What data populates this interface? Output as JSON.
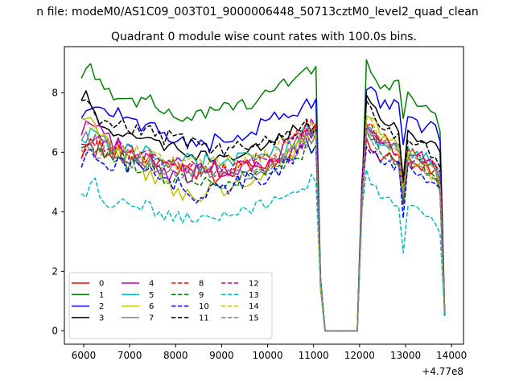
{
  "chart_data": {
    "type": "line",
    "suptitle": "n file: modeM0/AS1C09_003T01_9000006448_50713cztM0_level2_quad_clean",
    "title": "Quadrant 0 module wise count rates with 100.0s bins.",
    "xlabel": "",
    "ylabel": "",
    "x_offset_label": "+4.77e8",
    "xlim": [
      5580,
      14260
    ],
    "ylim": [
      -0.45,
      9.55
    ],
    "xticks": [
      6000,
      7000,
      8000,
      9000,
      10000,
      11000,
      12000,
      13000,
      14000
    ],
    "xtick_labels": [
      "6000",
      "7000",
      "8000",
      "9000",
      "10000",
      "11000",
      "12000",
      "13000",
      "14000"
    ],
    "yticks": [
      0,
      2,
      4,
      6,
      8
    ],
    "ytick_labels": [
      "0",
      "2",
      "4",
      "6",
      "8"
    ],
    "grid": false,
    "legend_position": "lower-left",
    "legend_columns": 4,
    "x_start": 5950,
    "x_step": 100,
    "series": [
      {
        "name": "0",
        "color": "#ff0000",
        "dash": "solid",
        "noise": 0.35,
        "base": [
          [
            5950,
            5.7
          ],
          [
            6100,
            6.2
          ],
          [
            6600,
            6.1
          ],
          [
            7000,
            5.9
          ],
          [
            8000,
            5.5
          ],
          [
            9000,
            5.3
          ],
          [
            10000,
            5.6
          ],
          [
            10500,
            6.0
          ],
          [
            11000,
            6.8
          ]
        ],
        "post": [
          [
            12150,
            6.2
          ],
          [
            12500,
            5.8
          ],
          [
            12900,
            5.6
          ],
          [
            13200,
            5.7
          ],
          [
            13700,
            5.2
          ],
          [
            13850,
            4.0
          ]
        ]
      },
      {
        "name": "1",
        "color": "#008000",
        "dash": "solid",
        "noise": 0.22,
        "base": [
          [
            5950,
            8.4
          ],
          [
            6050,
            9.0
          ],
          [
            6300,
            8.5
          ],
          [
            6600,
            8.0
          ],
          [
            7000,
            7.7
          ],
          [
            7500,
            7.8
          ],
          [
            8000,
            7.1
          ],
          [
            8800,
            7.4
          ],
          [
            9500,
            7.6
          ],
          [
            10000,
            7.9
          ],
          [
            10400,
            8.3
          ],
          [
            10800,
            8.7
          ],
          [
            11000,
            8.8
          ]
        ],
        "post": [
          [
            12150,
            9.1
          ],
          [
            12500,
            8.1
          ],
          [
            12900,
            8.5
          ],
          [
            13200,
            7.5
          ],
          [
            13600,
            7.5
          ],
          [
            13850,
            6.0
          ]
        ]
      },
      {
        "name": "2",
        "color": "#0000ff",
        "dash": "solid",
        "noise": 0.28,
        "base": [
          [
            5950,
            7.0
          ],
          [
            6100,
            7.7
          ],
          [
            6600,
            7.5
          ],
          [
            7000,
            7.0
          ],
          [
            7500,
            6.8
          ],
          [
            8000,
            6.4
          ],
          [
            8500,
            6.2
          ],
          [
            9000,
            6.4
          ],
          [
            9500,
            6.6
          ],
          [
            10000,
            7.0
          ],
          [
            10500,
            7.4
          ],
          [
            11000,
            7.7
          ]
        ],
        "post": [
          [
            12150,
            8.3
          ],
          [
            12500,
            7.5
          ],
          [
            12900,
            7.8
          ],
          [
            13200,
            6.9
          ],
          [
            13700,
            6.8
          ],
          [
            13850,
            5.7
          ]
        ]
      },
      {
        "name": "3",
        "color": "#000000",
        "dash": "solid",
        "noise": 0.22,
        "base": [
          [
            5950,
            7.6
          ],
          [
            6050,
            8.0
          ],
          [
            6400,
            6.9
          ],
          [
            7000,
            6.5
          ],
          [
            7600,
            6.3
          ],
          [
            8400,
            5.9
          ],
          [
            9000,
            5.7
          ],
          [
            9600,
            6.0
          ],
          [
            10000,
            6.3
          ],
          [
            10500,
            6.7
          ],
          [
            11000,
            6.9
          ]
        ],
        "post": [
          [
            12150,
            7.9
          ],
          [
            12500,
            7.1
          ],
          [
            12900,
            6.8
          ],
          [
            13200,
            6.5
          ],
          [
            13700,
            6.2
          ],
          [
            13850,
            5.2
          ]
        ]
      },
      {
        "name": "4",
        "color": "#bf00bf",
        "dash": "solid",
        "noise": 0.33,
        "base": [
          [
            5950,
            6.3
          ],
          [
            6100,
            7.0
          ],
          [
            6600,
            6.4
          ],
          [
            7000,
            6.0
          ],
          [
            8000,
            5.2
          ],
          [
            9000,
            5.4
          ],
          [
            10000,
            5.6
          ],
          [
            10500,
            6.0
          ],
          [
            11000,
            6.8
          ]
        ],
        "post": [
          [
            12150,
            7.1
          ],
          [
            12500,
            6.4
          ],
          [
            12900,
            6.0
          ],
          [
            13300,
            5.9
          ],
          [
            13700,
            5.4
          ],
          [
            13850,
            4.6
          ]
        ]
      },
      {
        "name": "5",
        "color": "#00bfbf",
        "dash": "solid",
        "noise": 0.33,
        "base": [
          [
            5950,
            6.1
          ],
          [
            6100,
            6.7
          ],
          [
            6600,
            6.3
          ],
          [
            7000,
            6.0
          ],
          [
            8000,
            5.7
          ],
          [
            9000,
            5.6
          ],
          [
            10000,
            5.8
          ],
          [
            10500,
            6.1
          ],
          [
            11000,
            6.9
          ]
        ],
        "post": [
          [
            12150,
            6.8
          ],
          [
            12500,
            6.3
          ],
          [
            12900,
            6.0
          ],
          [
            13300,
            5.9
          ],
          [
            13700,
            5.5
          ],
          [
            13850,
            4.7
          ]
        ]
      },
      {
        "name": "6",
        "color": "#bfbf00",
        "dash": "solid",
        "noise": 0.3,
        "base": [
          [
            5950,
            7.4
          ],
          [
            6100,
            7.0
          ],
          [
            6600,
            6.2
          ],
          [
            7000,
            5.6
          ],
          [
            8000,
            4.7
          ],
          [
            8400,
            4.5
          ],
          [
            9000,
            4.8
          ],
          [
            9600,
            5.1
          ],
          [
            10000,
            5.5
          ],
          [
            10500,
            5.9
          ],
          [
            11000,
            6.6
          ]
        ],
        "post": [
          [
            12150,
            7.4
          ],
          [
            12500,
            6.6
          ],
          [
            12900,
            6.1
          ],
          [
            13300,
            5.7
          ],
          [
            13700,
            5.0
          ],
          [
            13850,
            4.2
          ]
        ]
      },
      {
        "name": "7",
        "color": "#808080",
        "dash": "solid",
        "noise": 0.28,
        "base": [
          [
            5950,
            6.6
          ],
          [
            6100,
            6.5
          ],
          [
            6600,
            6.0
          ],
          [
            7000,
            5.8
          ],
          [
            8000,
            5.4
          ],
          [
            9000,
            5.3
          ],
          [
            10000,
            5.5
          ],
          [
            10500,
            5.9
          ],
          [
            11000,
            6.6
          ]
        ],
        "post": [
          [
            12150,
            6.9
          ],
          [
            12500,
            6.3
          ],
          [
            12900,
            6.0
          ],
          [
            13300,
            5.9
          ],
          [
            13700,
            5.3
          ],
          [
            13850,
            4.5
          ]
        ]
      },
      {
        "name": "8",
        "color": "#ff0000",
        "dash": "dashed",
        "noise": 0.32,
        "base": [
          [
            5950,
            6.0
          ],
          [
            6100,
            6.6
          ],
          [
            6600,
            6.2
          ],
          [
            7000,
            5.9
          ],
          [
            8000,
            5.5
          ],
          [
            9000,
            5.4
          ],
          [
            10000,
            5.8
          ],
          [
            10500,
            6.3
          ],
          [
            11000,
            7.0
          ]
        ],
        "post": [
          [
            12150,
            7.0
          ],
          [
            12500,
            6.4
          ],
          [
            12900,
            6.0
          ],
          [
            13300,
            5.9
          ],
          [
            13700,
            5.5
          ],
          [
            13850,
            4.7
          ]
        ]
      },
      {
        "name": "9",
        "color": "#008000",
        "dash": "dashed",
        "noise": 0.3,
        "base": [
          [
            5950,
            6.3
          ],
          [
            6100,
            6.3
          ],
          [
            6600,
            5.9
          ],
          [
            7000,
            5.6
          ],
          [
            8000,
            5.1
          ],
          [
            9000,
            4.9
          ],
          [
            10000,
            5.3
          ],
          [
            10500,
            5.7
          ],
          [
            11000,
            6.3
          ]
        ],
        "post": [
          [
            12150,
            6.6
          ],
          [
            12500,
            6.0
          ],
          [
            12900,
            5.7
          ],
          [
            13300,
            5.6
          ],
          [
            13700,
            5.1
          ],
          [
            13850,
            4.3
          ]
        ]
      },
      {
        "name": "10",
        "color": "#0000ff",
        "dash": "dashed",
        "noise": 0.3,
        "base": [
          [
            5950,
            5.6
          ],
          [
            6100,
            6.0
          ],
          [
            6600,
            5.6
          ],
          [
            7000,
            5.5
          ],
          [
            8000,
            5.0
          ],
          [
            8500,
            4.5
          ],
          [
            9000,
            4.8
          ],
          [
            10000,
            5.2
          ],
          [
            10500,
            5.7
          ],
          [
            11000,
            6.3
          ]
        ],
        "post": [
          [
            12150,
            6.3
          ],
          [
            12500,
            5.7
          ],
          [
            12900,
            5.5
          ],
          [
            13300,
            5.4
          ],
          [
            13700,
            4.9
          ],
          [
            13850,
            4.1
          ]
        ]
      },
      {
        "name": "11",
        "color": "#000000",
        "dash": "dashed",
        "noise": 0.28,
        "base": [
          [
            5950,
            7.8
          ],
          [
            6100,
            7.4
          ],
          [
            6600,
            7.0
          ],
          [
            7000,
            6.9
          ],
          [
            8000,
            6.4
          ],
          [
            9000,
            6.1
          ],
          [
            10000,
            6.4
          ],
          [
            10500,
            6.7
          ],
          [
            11000,
            6.9
          ]
        ],
        "post": [
          [
            12150,
            7.6
          ],
          [
            12500,
            6.8
          ],
          [
            12900,
            6.5
          ],
          [
            13300,
            6.3
          ],
          [
            13700,
            5.8
          ],
          [
            13850,
            5.0
          ]
        ]
      },
      {
        "name": "12",
        "color": "#bf00bf",
        "dash": "dashed",
        "noise": 0.3,
        "base": [
          [
            5950,
            6.3
          ],
          [
            6100,
            6.5
          ],
          [
            6600,
            6.2
          ],
          [
            7000,
            6.0
          ],
          [
            8000,
            5.6
          ],
          [
            9000,
            5.5
          ],
          [
            10000,
            5.8
          ],
          [
            10500,
            6.3
          ],
          [
            11000,
            6.9
          ]
        ],
        "post": [
          [
            12150,
            6.9
          ],
          [
            12500,
            6.3
          ],
          [
            12900,
            5.9
          ],
          [
            13300,
            5.8
          ],
          [
            13700,
            5.4
          ],
          [
            13850,
            4.6
          ]
        ]
      },
      {
        "name": "13",
        "color": "#00bfbf",
        "dash": "dashed",
        "noise": 0.22,
        "base": [
          [
            5950,
            4.6
          ],
          [
            6050,
            4.5
          ],
          [
            6200,
            5.3
          ],
          [
            6400,
            4.2
          ],
          [
            7000,
            4.4
          ],
          [
            7500,
            4.1
          ],
          [
            8000,
            3.8
          ],
          [
            8500,
            3.8
          ],
          [
            9000,
            3.8
          ],
          [
            9500,
            4.0
          ],
          [
            10000,
            4.3
          ],
          [
            10500,
            4.6
          ],
          [
            11000,
            5.1
          ]
        ],
        "post": [
          [
            12150,
            5.3
          ],
          [
            12500,
            4.4
          ],
          [
            12900,
            4.2
          ],
          [
            13300,
            4.0
          ],
          [
            13700,
            3.6
          ],
          [
            13850,
            2.6
          ]
        ]
      },
      {
        "name": "14",
        "color": "#bfbf00",
        "dash": "dashed",
        "noise": 0.3,
        "base": [
          [
            5950,
            7.1
          ],
          [
            6100,
            6.8
          ],
          [
            6600,
            6.3
          ],
          [
            7000,
            6.0
          ],
          [
            8000,
            5.6
          ],
          [
            9000,
            5.6
          ],
          [
            10000,
            5.9
          ],
          [
            10500,
            6.3
          ],
          [
            11000,
            6.8
          ]
        ],
        "post": [
          [
            12150,
            7.2
          ],
          [
            12500,
            6.4
          ],
          [
            12900,
            6.1
          ],
          [
            13300,
            5.9
          ],
          [
            13700,
            5.4
          ],
          [
            13850,
            4.4
          ]
        ]
      },
      {
        "name": "15",
        "color": "#808080",
        "dash": "dashed",
        "noise": 0.28,
        "base": [
          [
            5950,
            6.0
          ],
          [
            6100,
            6.2
          ],
          [
            6600,
            5.9
          ],
          [
            7000,
            5.7
          ],
          [
            8000,
            5.3
          ],
          [
            9000,
            5.2
          ],
          [
            10000,
            5.5
          ],
          [
            10500,
            5.9
          ],
          [
            11000,
            6.6
          ]
        ],
        "post": [
          [
            12150,
            6.6
          ],
          [
            12500,
            6.0
          ],
          [
            12900,
            5.7
          ],
          [
            13300,
            5.6
          ],
          [
            13700,
            5.1
          ],
          [
            13850,
            4.3
          ]
        ]
      }
    ]
  }
}
